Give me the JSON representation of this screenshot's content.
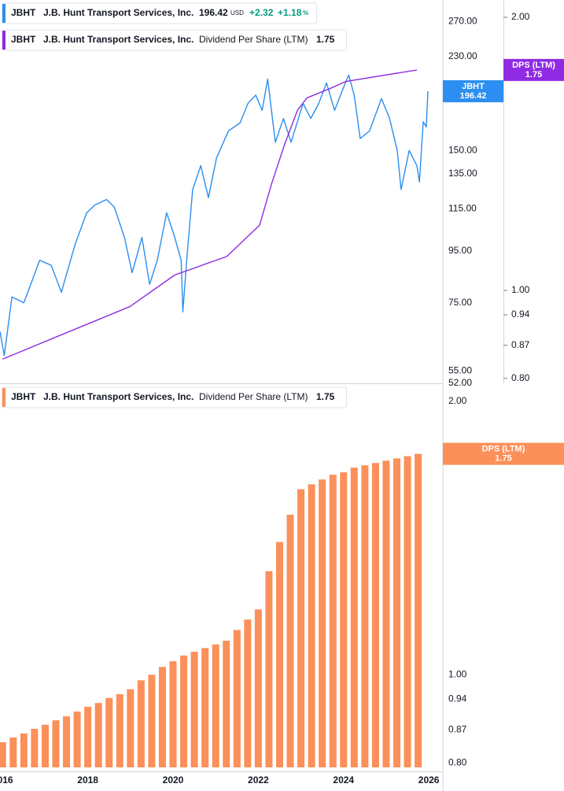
{
  "chart_data": [
    {
      "type": "line",
      "ylog": true,
      "xlim": [
        2015.94,
        2026.33
      ],
      "ylim": [
        52,
        297.5
      ],
      "yticks": [
        {
          "value": 52,
          "label": "52.00"
        },
        {
          "value": 55,
          "label": "55.00"
        },
        {
          "value": 75,
          "label": "75.00"
        },
        {
          "value": 95,
          "label": "95.00"
        },
        {
          "value": 115,
          "label": "115.00"
        },
        {
          "value": 135,
          "label": "135.00"
        },
        {
          "value": 150,
          "label": "150.00"
        },
        {
          "value": 230,
          "label": "230.00"
        },
        {
          "value": 270,
          "label": "270.00"
        }
      ],
      "y2lim": [
        0.79,
        2.09
      ],
      "y2ticks": [
        {
          "value": 0.8,
          "label": "0.80"
        },
        0.87,
        0.94,
        {
          "value": 1,
          "label": "1.00"
        },
        {
          "value": 2,
          "label": "2.00"
        }
      ],
      "series": [
        {
          "name": "J.B. Hunt Transport Services, Inc.",
          "symbol": "JBHT",
          "color": "#2b8ef0",
          "currency": "USD",
          "change": "+2.32",
          "change_pct": "+1.18",
          "pct_unit": "%",
          "x": [
            2015.94,
            2016.04,
            2016.22,
            2016.5,
            2016.87,
            2017.14,
            2017.38,
            2017.7,
            2017.97,
            2018.16,
            2018.44,
            2018.62,
            2018.86,
            2019.04,
            2019.27,
            2019.45,
            2019.63,
            2019.85,
            2020.04,
            2020.19,
            2020.23,
            2020.32,
            2020.46,
            2020.65,
            2020.83,
            2021.02,
            2021.3,
            2021.57,
            2021.76,
            2021.94,
            2022.09,
            2022.22,
            2022.4,
            2022.59,
            2022.77,
            2023.05,
            2023.23,
            2023.42,
            2023.6,
            2023.79,
            2023.97,
            2024.12,
            2024.25,
            2024.39,
            2024.61,
            2024.89,
            2025.08,
            2025.26,
            2025.35,
            2025.54,
            2025.72,
            2025.78,
            2025.87,
            2025.94,
            2025.98
          ],
          "values": [
            65.8,
            59,
            77,
            75,
            91,
            89,
            78.7,
            97.7,
            112.8,
            117,
            120,
            116,
            101,
            86,
            101,
            81.6,
            91,
            113,
            101,
            91,
            72,
            91,
            125.6,
            140,
            121,
            145,
            164,
            170,
            186,
            193,
            180,
            207.6,
            155.7,
            173.5,
            155.7,
            186,
            173.5,
            186,
            204,
            180,
            197,
            211.5,
            193,
            158.4,
            164,
            190,
            173.5,
            150,
            125.6,
            150,
            140,
            130,
            171,
            167,
            196.42
          ]
        },
        {
          "name": "Dividend Per Share (LTM)",
          "symbol": "JBHT",
          "company": "J.B. Hunt Transport Services, Inc.",
          "tag": "DPS (LTM)",
          "color": "#8f2be2",
          "axis": "y2",
          "x": [
            2016.0,
            2018.99,
            2020.04,
            2021.26,
            2022.03,
            2022.31,
            2022.62,
            2022.92,
            2023.14,
            2023.69,
            2024.06,
            2025.72
          ],
          "values": [
            0.84,
            0.96,
            1.04,
            1.09,
            1.18,
            1.31,
            1.45,
            1.58,
            1.63,
            1.67,
            1.7,
            1.75
          ]
        }
      ]
    },
    {
      "type": "bar",
      "ylog": true,
      "symbol": "JBHT",
      "company": "J.B. Hunt Transport Services, Inc.",
      "name": "Dividend Per Share (LTM)",
      "tag": "DPS (LTM)",
      "color": "#fb905a",
      "xlim": [
        2015.94,
        2026.33
      ],
      "xticks": [
        2016,
        2018,
        2020,
        2022,
        2024,
        2026
      ],
      "ylim": [
        0.783,
        2.08
      ],
      "yticks": [
        {
          "value": 0.8,
          "label": "0.80"
        },
        0.87,
        0.94,
        {
          "value": 1,
          "label": "1.00"
        },
        {
          "value": 2,
          "label": "2.00"
        }
      ],
      "x": [
        2016.0,
        2016.25,
        2016.5,
        2016.75,
        2017.0,
        2017.25,
        2017.5,
        2017.75,
        2018.0,
        2018.25,
        2018.5,
        2018.75,
        2019.0,
        2019.25,
        2019.5,
        2019.75,
        2020.0,
        2020.25,
        2020.5,
        2020.75,
        2021.0,
        2021.25,
        2021.5,
        2021.75,
        2022.0,
        2022.25,
        2022.5,
        2022.75,
        2023.0,
        2023.25,
        2023.5,
        2023.75,
        2024.0,
        2024.25,
        2024.5,
        2024.75,
        2025.0,
        2025.25,
        2025.5,
        2025.75
      ],
      "values": [
        0.843,
        0.853,
        0.862,
        0.872,
        0.881,
        0.891,
        0.9,
        0.911,
        0.922,
        0.931,
        0.943,
        0.952,
        0.964,
        0.986,
        1.0,
        1.02,
        1.035,
        1.05,
        1.06,
        1.07,
        1.08,
        1.09,
        1.12,
        1.15,
        1.18,
        1.3,
        1.4,
        1.5,
        1.6,
        1.62,
        1.64,
        1.66,
        1.67,
        1.69,
        1.7,
        1.71,
        1.72,
        1.73,
        1.74,
        1.75
      ]
    }
  ]
}
